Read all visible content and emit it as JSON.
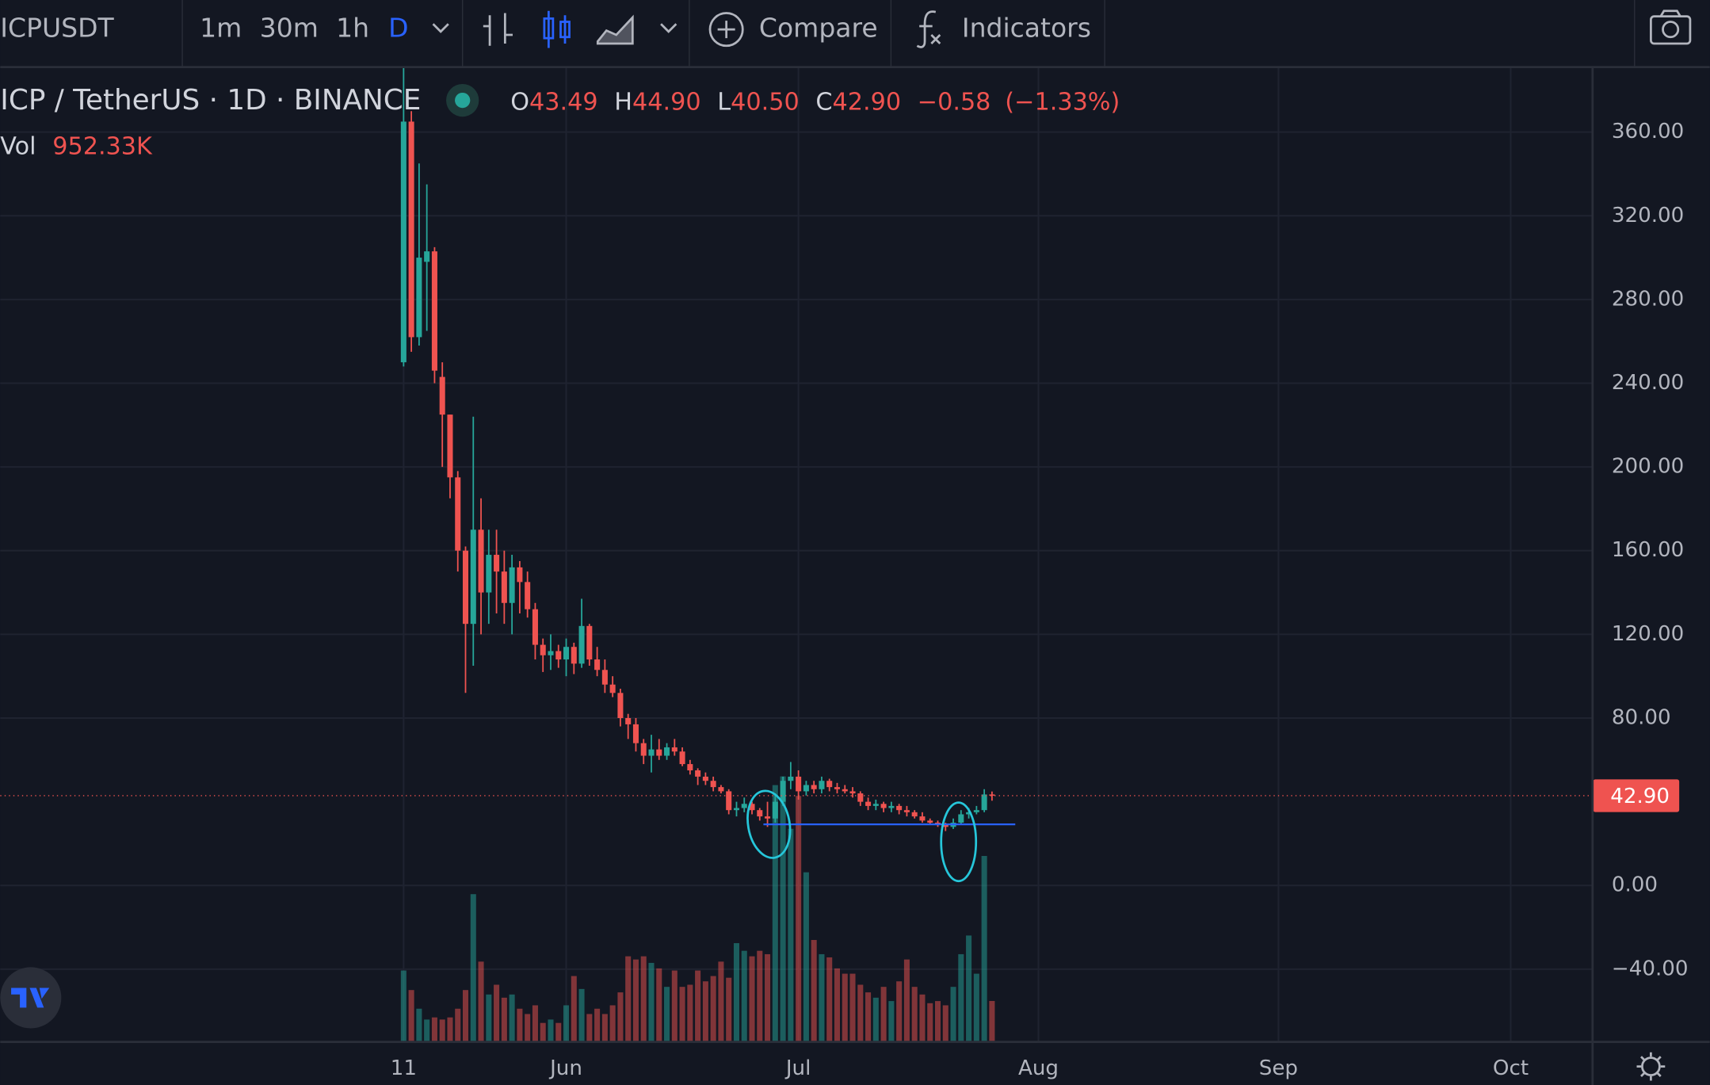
{
  "toolbar": {
    "symbol": "ICPUSDT",
    "intervals": [
      "1m",
      "30m",
      "1h",
      "D"
    ],
    "compare": "Compare",
    "indicators": "Indicators"
  },
  "legend": {
    "title": "ICP / TetherUS · 1D · BINANCE",
    "open_label": "O",
    "open": "43.49",
    "high_label": "H",
    "high": "44.90",
    "low_label": "L",
    "low": "40.50",
    "close_label": "C",
    "close": "42.90",
    "change": "−0.58",
    "change_pct": "(−1.33%)"
  },
  "chart_data": {
    "type": "candlestick",
    "x": [
      0,
      1,
      2,
      3,
      4,
      5,
      6,
      7,
      8,
      9,
      10,
      11,
      12,
      13,
      14,
      15,
      16,
      17,
      18,
      19,
      20,
      21,
      22,
      23,
      24,
      25,
      26,
      27,
      28,
      29,
      30,
      31,
      32,
      33,
      34,
      35,
      36,
      37,
      38,
      39,
      40,
      41,
      42,
      43,
      44,
      45,
      46,
      47,
      48,
      49,
      50,
      51,
      52,
      53,
      54,
      55,
      56,
      57,
      58,
      59,
      60,
      61,
      62,
      63,
      64,
      65,
      66,
      67,
      68,
      69,
      70,
      71,
      72,
      73,
      74,
      75,
      76
    ],
    "open": [
      250,
      365,
      262,
      298,
      303,
      243,
      225,
      195,
      160,
      125,
      170,
      140,
      158,
      150,
      135,
      152,
      145,
      132,
      115,
      110,
      112,
      108,
      114,
      106,
      124,
      108,
      103,
      96,
      92,
      80,
      77,
      68,
      62,
      65,
      62,
      66,
      64,
      58,
      55,
      52,
      50,
      47,
      45,
      36,
      37,
      39,
      36,
      33,
      32,
      40,
      50,
      52,
      45,
      48,
      46,
      50,
      47,
      46,
      45,
      44,
      40,
      38,
      39,
      37,
      38,
      36,
      35,
      33,
      31,
      30,
      29,
      28,
      30,
      34,
      35,
      36,
      43.49
    ],
    "high": [
      400,
      370,
      345,
      335,
      305,
      250,
      225,
      198,
      162,
      224,
      185,
      170,
      170,
      160,
      158,
      155,
      150,
      135,
      118,
      120,
      115,
      118,
      116,
      137,
      125,
      114,
      108,
      100,
      94,
      82,
      80,
      70,
      72,
      70,
      68,
      70,
      66,
      60,
      56,
      54,
      52,
      48,
      46,
      40,
      42,
      40,
      37,
      40,
      44,
      52,
      59,
      55,
      50,
      50,
      52,
      51,
      49,
      48,
      47,
      45,
      42,
      41,
      40,
      40,
      39,
      38,
      36,
      35,
      32,
      31,
      30,
      32,
      36,
      37,
      38,
      46,
      44.9
    ],
    "low": [
      248,
      255,
      258,
      265,
      240,
      200,
      185,
      150,
      92,
      105,
      120,
      125,
      130,
      125,
      120,
      130,
      128,
      108,
      102,
      103,
      104,
      100,
      101,
      104,
      105,
      100,
      92,
      90,
      76,
      70,
      64,
      58,
      54,
      60,
      60,
      62,
      57,
      53,
      48,
      48,
      45,
      44,
      34,
      33,
      35,
      34,
      31,
      28,
      30,
      38,
      46,
      41,
      43,
      44,
      44,
      45,
      44,
      44,
      42,
      38,
      36,
      36,
      35,
      35,
      34,
      33,
      32,
      30,
      29,
      28,
      26,
      27,
      29,
      32,
      34,
      35,
      40.5
    ],
    "close": [
      365,
      262,
      300,
      303,
      246,
      225,
      195,
      160,
      125,
      170,
      140,
      158,
      150,
      135,
      152,
      145,
      132,
      115,
      110,
      112,
      108,
      114,
      106,
      124,
      108,
      103,
      96,
      92,
      80,
      77,
      68,
      62,
      65,
      62,
      66,
      64,
      58,
      55,
      52,
      50,
      47,
      45,
      36,
      37,
      39,
      36,
      33,
      32,
      40,
      50,
      52,
      45,
      48,
      46,
      50,
      47,
      46,
      45,
      44,
      40,
      38,
      39,
      37,
      38,
      36,
      35,
      33,
      31,
      30,
      29,
      28,
      30,
      34,
      35,
      36,
      43.49,
      42.9
    ],
    "last_price_label": "42.90",
    "volume": {
      "name": "Vol",
      "last_label": "952.33K",
      "values": [
        1670,
        1210,
        770,
        515,
        565,
        515,
        565,
        770,
        1210,
        3470,
        1880,
        1105,
        1335,
        1030,
        1105,
        770,
        645,
        850,
        435,
        515,
        435,
        850,
        1540,
        1235,
        645,
        770,
        645,
        850,
        1155,
        2005,
        1930,
        2005,
        1850,
        1720,
        1285,
        1670,
        1285,
        1335,
        1670,
        1415,
        1540,
        1880,
        1500,
        2315,
        2135,
        2005,
        2135,
        2055,
        6040,
        6245,
        5010,
        5785,
        3985,
        2390,
        2055,
        1980,
        1720,
        1595,
        1595,
        1335,
        1155,
        1030,
        1285,
        950,
        1415,
        1930,
        1285,
        1105,
        900,
        950,
        850,
        1285,
        2055,
        2495,
        1595,
        4370,
        952.33
      ]
    },
    "up_color": "#26a69a",
    "down_color": "#ef5350",
    "level_line": 29.2,
    "level_color": "#2962ff",
    "xlim": [
      -52.1,
      153.5
    ],
    "xticks": [
      {
        "value": 0,
        "label": "11"
      },
      {
        "value": 21,
        "label": "Jun"
      },
      {
        "value": 51,
        "label": "Jul"
      },
      {
        "value": 82,
        "label": "Aug"
      },
      {
        "value": 113,
        "label": "Sep"
      },
      {
        "value": 143,
        "label": "Oct"
      }
    ],
    "ylim": [
      -74.5,
      390.8
    ],
    "yticks": [
      {
        "value": 360,
        "label": "360.00"
      },
      {
        "value": 320,
        "label": "320.00"
      },
      {
        "value": 280,
        "label": "280.00"
      },
      {
        "value": 240,
        "label": "240.00"
      },
      {
        "value": 200,
        "label": "200.00"
      },
      {
        "value": 160,
        "label": "160.00"
      },
      {
        "value": 120,
        "label": "120.00"
      },
      {
        "value": 80,
        "label": "80.00"
      },
      {
        "value": 0,
        "label": "0.00"
      },
      {
        "value": -40,
        "label": "−40.00"
      }
    ],
    "grid": true
  }
}
